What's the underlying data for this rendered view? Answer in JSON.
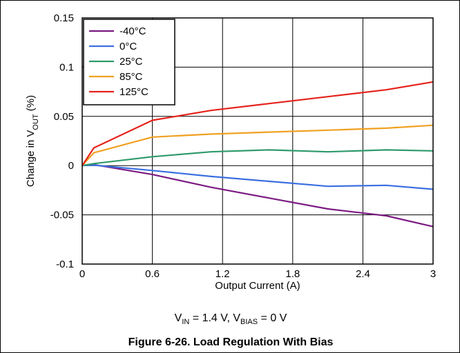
{
  "chart_data": {
    "type": "line",
    "title": "",
    "xlabel": "Output Current (A)",
    "ylabel": {
      "pre": "Change in V",
      "sub": "OUT",
      "post": " (%)"
    },
    "xlim": [
      0,
      3
    ],
    "ylim": [
      -0.1,
      0.15
    ],
    "x_ticks": [
      "0",
      "0.6",
      "1.2",
      "1.8",
      "2.4",
      "3"
    ],
    "y_ticks": [
      "-0.1",
      "-0.05",
      "0",
      "0.05",
      "0.1",
      "0.15"
    ],
    "grid": true,
    "legend_position": "top-left",
    "series": [
      {
        "name": "-40°C",
        "color": "#7b1a83",
        "x": [
          0,
          0.1,
          0.6,
          1.1,
          1.6,
          2.1,
          2.6,
          3.0
        ],
        "y": [
          0,
          0.001,
          -0.009,
          -0.022,
          -0.033,
          -0.044,
          -0.051,
          -0.062
        ]
      },
      {
        "name": "0°C",
        "color": "#3a6fe0",
        "x": [
          0,
          0.1,
          0.6,
          1.1,
          1.6,
          2.1,
          2.6,
          3.0
        ],
        "y": [
          0,
          0.0005,
          -0.005,
          -0.011,
          -0.016,
          -0.021,
          -0.02,
          -0.024
        ]
      },
      {
        "name": "25°C",
        "color": "#2e9a6a",
        "x": [
          0,
          0.1,
          0.6,
          1.1,
          1.6,
          2.1,
          2.6,
          3.0
        ],
        "y": [
          0,
          0.002,
          0.009,
          0.014,
          0.016,
          0.014,
          0.016,
          0.015
        ]
      },
      {
        "name": "85°C",
        "color": "#f0a020",
        "x": [
          0,
          0.1,
          0.6,
          1.1,
          1.6,
          2.1,
          2.6,
          3.0
        ],
        "y": [
          0,
          0.013,
          0.029,
          0.032,
          0.034,
          0.036,
          0.038,
          0.041
        ]
      },
      {
        "name": "125°C",
        "color": "#e5221c",
        "x": [
          0,
          0.1,
          0.6,
          1.1,
          1.6,
          2.1,
          2.6,
          3.0
        ],
        "y": [
          0,
          0.018,
          0.046,
          0.056,
          0.063,
          0.07,
          0.077,
          0.085
        ]
      }
    ]
  },
  "conditions": {
    "vin_pre": "V",
    "vin_sub": "IN",
    "vin_post": " = 1.4 V, V",
    "vbias_sub": "BIAS",
    "vbias_post": " = 0 V"
  },
  "caption": "Figure 6-26. Load Regulation With Bias"
}
